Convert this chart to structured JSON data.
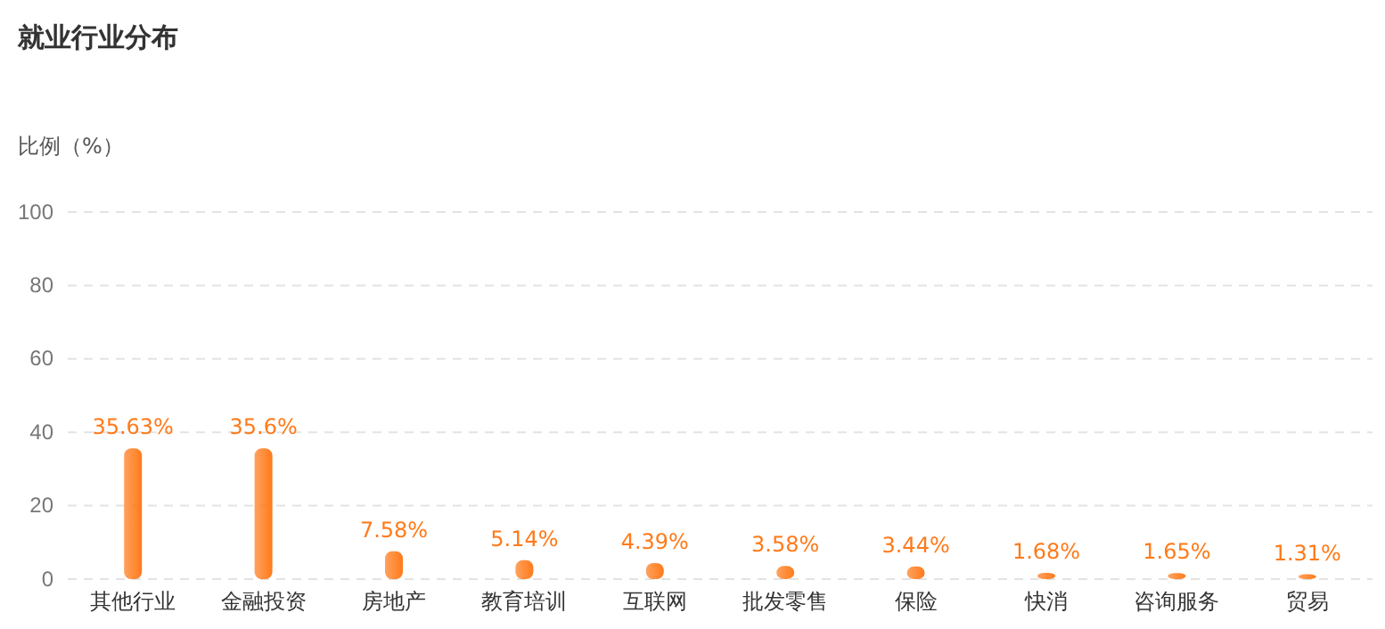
{
  "chart_data": {
    "type": "bar",
    "title": "就业行业分布",
    "ylabel": "比例（%）",
    "categories": [
      "其他行业",
      "金融投资",
      "房地产",
      "教育培训",
      "互联网",
      "批发零售",
      "保险",
      "快消",
      "咨询服务",
      "贸易"
    ],
    "values": [
      35.63,
      35.6,
      7.58,
      5.14,
      4.39,
      3.58,
      3.44,
      1.68,
      1.65,
      1.31
    ],
    "value_labels": [
      "35.63%",
      "35.6%",
      "7.58%",
      "5.14%",
      "4.39%",
      "3.58%",
      "3.44%",
      "1.68%",
      "1.65%",
      "1.31%"
    ],
    "color": "#ff7a1a",
    "ylim": [
      0,
      100
    ],
    "yticks": [
      0,
      20,
      40,
      60,
      80,
      100
    ],
    "grid": "y"
  }
}
